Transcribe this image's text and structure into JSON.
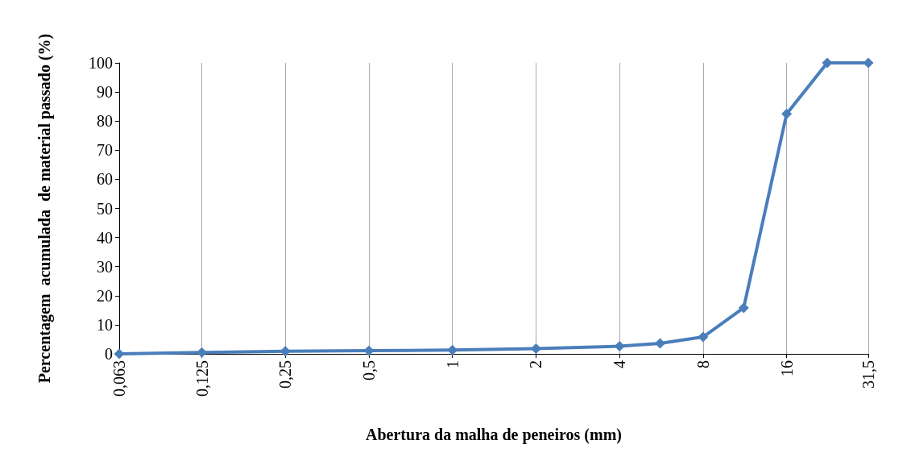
{
  "chart_data": {
    "type": "line",
    "xlabel": "Abertura da malha de peneiros (mm)",
    "ylabel": "Percentagem  acumulada  de material passado (%)",
    "x": [
      0.063,
      0.125,
      0.25,
      0.5,
      1,
      2,
      4,
      5.6,
      8,
      11.2,
      16,
      22.4,
      31.5
    ],
    "series": [
      {
        "color": "#4a7ebb",
        "values": [
          0,
          0.5,
          0.9,
          1.1,
          1.3,
          1.8,
          2.6,
          3.6,
          5.8,
          15.8,
          82.5,
          100,
          100
        ]
      }
    ],
    "log": "x",
    "xlim": [
      0.063,
      31.5
    ],
    "xticks": [
      {
        "value": 0.063,
        "label": "0,063"
      },
      {
        "value": 0.125,
        "label": "0,125"
      },
      {
        "value": 0.25,
        "label": "0,25"
      },
      {
        "value": 0.5,
        "label": "0,5"
      },
      1,
      2,
      4,
      8,
      16,
      {
        "value": 31.5,
        "label": "31,5"
      }
    ],
    "ylim": [
      0,
      100
    ],
    "yticks": [
      0,
      10,
      20,
      30,
      40,
      50,
      60,
      70,
      80,
      90,
      100
    ],
    "grid": "x",
    "marker": "diamond",
    "line_style": "solid"
  }
}
